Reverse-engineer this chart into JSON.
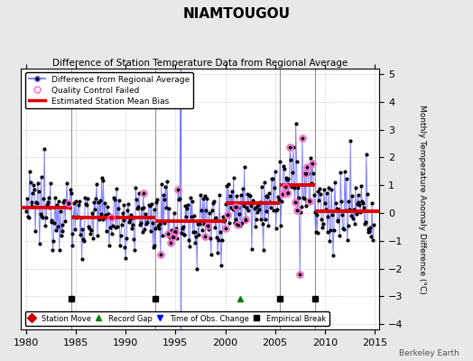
{
  "title": "NIAMTOUGOU",
  "subtitle": "Difference of Station Temperature Data from Regional Average",
  "ylabel": "Monthly Temperature Anomaly Difference (°C)",
  "xlim": [
    1979.5,
    2015.5
  ],
  "ylim": [
    -4.2,
    5.2
  ],
  "yticks": [
    -4,
    -3,
    -2,
    -1,
    0,
    1,
    2,
    3,
    4,
    5
  ],
  "xticks": [
    1980,
    1985,
    1990,
    1995,
    2000,
    2005,
    2010,
    2015
  ],
  "background_color": "#e8e8e8",
  "plot_bg_color": "#ffffff",
  "line_color": "#6666ff",
  "dot_color": "#000000",
  "mean_bias_color": "#dd0000",
  "qc_fail_color": "#ff66cc",
  "vline_color": "#888888",
  "watermark": "Berkeley Earth",
  "segments": [
    {
      "start": 1979.5,
      "end": 1984.5,
      "bias": 0.2
    },
    {
      "start": 1984.5,
      "end": 1993.0,
      "bias": -0.15
    },
    {
      "start": 1993.0,
      "end": 2000.0,
      "bias": -0.3
    },
    {
      "start": 2000.0,
      "end": 2005.5,
      "bias": 0.35
    },
    {
      "start": 2005.5,
      "end": 2009.0,
      "bias": 1.0
    },
    {
      "start": 2009.0,
      "end": 2015.5,
      "bias": 0.05
    }
  ],
  "vlines": [
    1984.5,
    1993.0,
    2005.5,
    2009.0
  ],
  "obs_vlines": [
    1995.5
  ],
  "event_markers_bottom": [
    {
      "type": "empirical_break",
      "year": 1984.5,
      "color": "black",
      "marker": "s"
    },
    {
      "type": "empirical_break",
      "year": 1993.0,
      "color": "black",
      "marker": "s"
    },
    {
      "type": "record_gap",
      "year": 2001.5,
      "color": "green",
      "marker": "^"
    },
    {
      "type": "empirical_break",
      "year": 2005.5,
      "color": "black",
      "marker": "s"
    },
    {
      "type": "empirical_break",
      "year": 2009.0,
      "color": "black",
      "marker": "s"
    }
  ],
  "qc_fail_years": [
    1984.25,
    1988.5,
    1991.75,
    1993.5,
    1994.25,
    1994.5,
    1994.75,
    1995.0,
    1995.25,
    1998.0,
    1998.25,
    2000.0,
    2000.25,
    2001.0,
    2001.25,
    2002.0,
    2005.75,
    2006.0,
    2006.25,
    2006.5,
    2007.0,
    2007.25,
    2007.5,
    2007.75,
    2008.0,
    2008.25,
    2008.5,
    2008.75
  ],
  "seed": 12345
}
